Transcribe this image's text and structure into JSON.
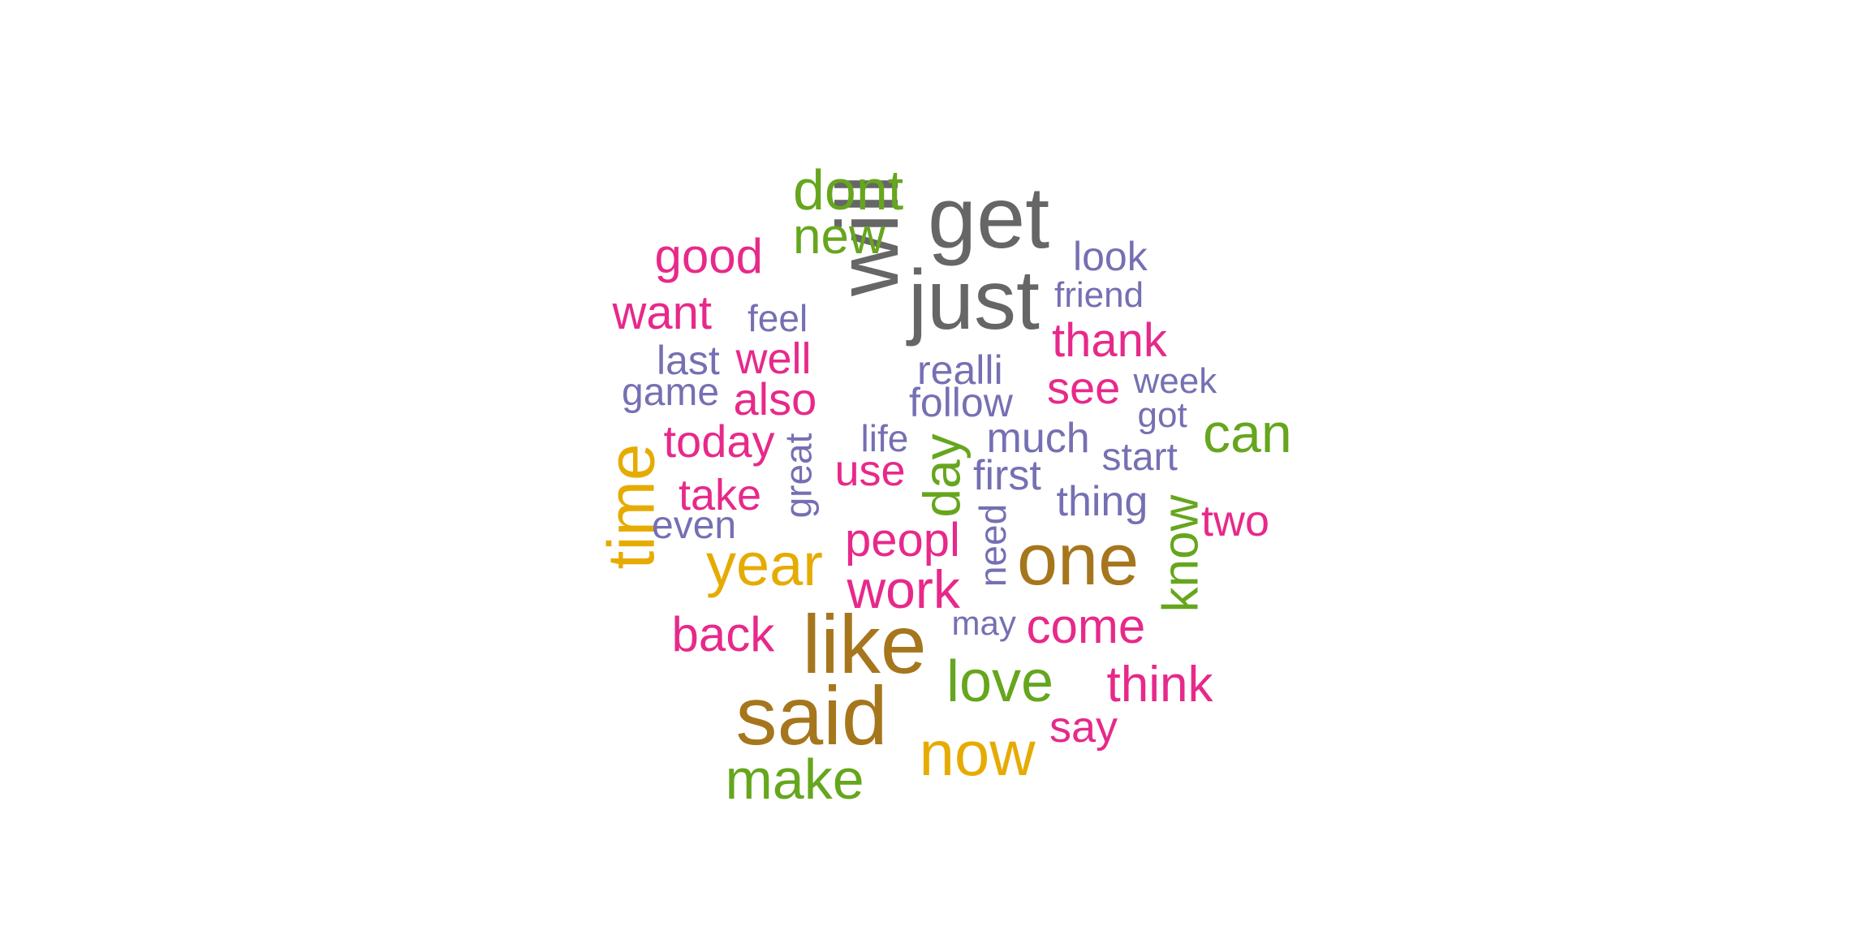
{
  "colors": {
    "gray": "#666666",
    "brown": "#a6761d",
    "gold": "#e6ab02",
    "green": "#66a61e",
    "magenta": "#e7298a",
    "purple": "#7570b3"
  },
  "words": [
    {
      "text": "get",
      "color": "gray"
    },
    {
      "text": "will",
      "color": "gray"
    },
    {
      "text": "just",
      "color": "gray"
    },
    {
      "text": "dont",
      "color": "green"
    },
    {
      "text": "new",
      "color": "green"
    },
    {
      "text": "good",
      "color": "magenta"
    },
    {
      "text": "look",
      "color": "purple"
    },
    {
      "text": "friend",
      "color": "purple"
    },
    {
      "text": "want",
      "color": "magenta"
    },
    {
      "text": "feel",
      "color": "purple"
    },
    {
      "text": "thank",
      "color": "magenta"
    },
    {
      "text": "last",
      "color": "purple"
    },
    {
      "text": "well",
      "color": "magenta"
    },
    {
      "text": "realli",
      "color": "purple"
    },
    {
      "text": "game",
      "color": "purple"
    },
    {
      "text": "also",
      "color": "magenta"
    },
    {
      "text": "see",
      "color": "magenta"
    },
    {
      "text": "week",
      "color": "purple"
    },
    {
      "text": "follow",
      "color": "purple"
    },
    {
      "text": "got",
      "color": "purple"
    },
    {
      "text": "can",
      "color": "green"
    },
    {
      "text": "today",
      "color": "magenta"
    },
    {
      "text": "life",
      "color": "purple"
    },
    {
      "text": "much",
      "color": "purple"
    },
    {
      "text": "great",
      "color": "purple"
    },
    {
      "text": "start",
      "color": "purple"
    },
    {
      "text": "time",
      "color": "gold"
    },
    {
      "text": "day",
      "color": "green"
    },
    {
      "text": "use",
      "color": "magenta"
    },
    {
      "text": "first",
      "color": "purple"
    },
    {
      "text": "take",
      "color": "magenta"
    },
    {
      "text": "thing",
      "color": "purple"
    },
    {
      "text": "know",
      "color": "green"
    },
    {
      "text": "two",
      "color": "magenta"
    },
    {
      "text": "even",
      "color": "purple"
    },
    {
      "text": "need",
      "color": "purple"
    },
    {
      "text": "peopl",
      "color": "magenta"
    },
    {
      "text": "one",
      "color": "brown"
    },
    {
      "text": "year",
      "color": "gold"
    },
    {
      "text": "work",
      "color": "magenta"
    },
    {
      "text": "may",
      "color": "purple"
    },
    {
      "text": "come",
      "color": "magenta"
    },
    {
      "text": "back",
      "color": "magenta"
    },
    {
      "text": "like",
      "color": "brown"
    },
    {
      "text": "love",
      "color": "green"
    },
    {
      "text": "think",
      "color": "magenta"
    },
    {
      "text": "said",
      "color": "brown"
    },
    {
      "text": "say",
      "color": "magenta"
    },
    {
      "text": "now",
      "color": "gold"
    },
    {
      "text": "make",
      "color": "green"
    }
  ]
}
